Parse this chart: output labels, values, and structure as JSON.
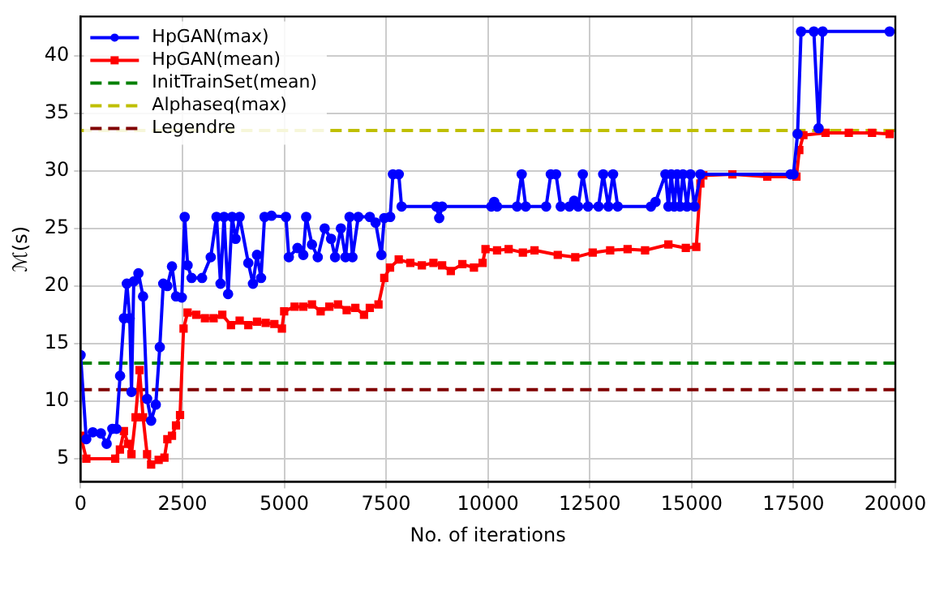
{
  "chart_data": {
    "type": "line",
    "xlabel": "No. of iterations",
    "ylabel": "ℳ(s)",
    "xlim": [
      0,
      20000
    ],
    "xticks": [
      0,
      2500,
      5000,
      7500,
      10000,
      12500,
      15000,
      17500,
      20000
    ],
    "ylim": [
      3,
      43.4
    ],
    "yticks": [
      5,
      10,
      15,
      20,
      25,
      30,
      35,
      40
    ],
    "grid": true,
    "legend": "top left",
    "line_style": "solid",
    "series": [
      {
        "name": "HpGAN(max)",
        "color": "#0000ff",
        "marker": "circle",
        "x": [
          0,
          140,
          300,
          500,
          640,
          780,
          880,
          970,
          1065,
          1136,
          1207,
          1250,
          1306,
          1420,
          1534,
          1633,
          1732,
          1846,
          1945,
          2030,
          2130,
          2244,
          2343,
          2485,
          2556,
          2627,
          2726,
          2982,
          3195,
          3337,
          3436,
          3522,
          3621,
          3720,
          3806,
          3905,
          4118,
          4232,
          4331,
          4430,
          4516,
          4686,
          5041,
          5112,
          5325,
          5467,
          5538,
          5680,
          5822,
          5992,
          6149,
          6248,
          6390,
          6504,
          6603,
          6674,
          6816,
          7100,
          7242,
          7384,
          7455,
          7600,
          7668,
          7810,
          7880,
          8733,
          8804,
          8875,
          10082,
          10153,
          10224,
          10714,
          10828,
          10928,
          11428,
          11543,
          11671,
          11786,
          12000,
          12114,
          12214,
          12328,
          12457,
          12714,
          12829,
          12957,
          13071,
          13186,
          14000,
          14114,
          14357,
          14429,
          14500,
          14572,
          14643,
          14714,
          14786,
          14886,
          14972,
          15072,
          15215,
          17430,
          17500,
          17600,
          17686,
          18000,
          18116,
          18216,
          19860
        ],
        "values": [
          14,
          6.7,
          7.3,
          7.2,
          6.3,
          7.6,
          7.6,
          12.2,
          17.2,
          20.2,
          17.2,
          10.8,
          20.4,
          21.1,
          19.1,
          10.2,
          8.3,
          9.7,
          14.7,
          20.2,
          20,
          21.7,
          19.1,
          19,
          26,
          21.8,
          20.7,
          20.7,
          22.5,
          26,
          20.2,
          26,
          19.3,
          26,
          24.1,
          26,
          22,
          20.2,
          22.7,
          20.7,
          26,
          26.1,
          26,
          22.5,
          23.3,
          22.7,
          26,
          23.6,
          22.5,
          25,
          24.1,
          22.5,
          25,
          22.5,
          26,
          22.5,
          26,
          26,
          25.5,
          22.7,
          25.9,
          26,
          29.7,
          29.7,
          26.9,
          26.9,
          25.9,
          26.9,
          26.9,
          27.3,
          26.9,
          26.9,
          29.7,
          26.9,
          26.9,
          29.7,
          29.7,
          26.9,
          26.9,
          27.4,
          26.9,
          29.7,
          26.9,
          26.9,
          29.7,
          26.9,
          29.7,
          26.9,
          26.9,
          27.3,
          29.7,
          26.9,
          29.7,
          26.9,
          29.7,
          26.9,
          29.7,
          26.9,
          29.7,
          26.9,
          29.7,
          29.7,
          29.7,
          33.2,
          42.1,
          42.1,
          33.7,
          42.1,
          42.1
        ]
      },
      {
        "name": "HpGAN(mean)",
        "color": "#ff0000",
        "marker": "square",
        "x": [
          0,
          142,
          850,
          966,
          1065,
          1164,
          1250,
          1350,
          1448,
          1534,
          1633,
          1732,
          1917,
          2059,
          2130,
          2244,
          2343,
          2442,
          2528,
          2627,
          2840,
          3053,
          3266,
          3479,
          3692,
          3905,
          4118,
          4331,
          4544,
          4757,
          4942,
          4998,
          5254,
          5467,
          5680,
          5893,
          6106,
          6319,
          6532,
          6745,
          6958,
          7100,
          7313,
          7455,
          7597,
          7810,
          8094,
          8378,
          8662,
          8875,
          9088,
          9372,
          9656,
          9869,
          9940,
          10224,
          10508,
          10857,
          11143,
          11714,
          12143,
          12571,
          13000,
          13428,
          13857,
          14429,
          14857,
          15114,
          15215,
          15286,
          16000,
          16857,
          17572,
          17643,
          17743,
          18286,
          18857,
          19428,
          19860
        ],
        "values": [
          7,
          5,
          5,
          5.8,
          7.4,
          6.3,
          5.4,
          8.6,
          12.7,
          8.6,
          5.4,
          4.5,
          4.9,
          5.1,
          6.7,
          7,
          7.9,
          8.8,
          16.3,
          17.7,
          17.5,
          17.2,
          17.2,
          17.5,
          16.6,
          17,
          16.6,
          16.9,
          16.8,
          16.7,
          16.3,
          17.8,
          18.2,
          18.2,
          18.4,
          17.8,
          18.2,
          18.4,
          17.9,
          18.1,
          17.5,
          18.1,
          18.4,
          20.7,
          21.6,
          22.3,
          22,
          21.8,
          22,
          21.8,
          21.3,
          21.9,
          21.6,
          22,
          23.2,
          23.1,
          23.2,
          22.9,
          23.1,
          22.7,
          22.5,
          22.9,
          23.1,
          23.2,
          23.1,
          23.6,
          23.3,
          23.4,
          28.9,
          29.6,
          29.7,
          29.5,
          29.5,
          31.8,
          33.1,
          33.3,
          33.3,
          33.3,
          33.2
        ]
      }
    ],
    "ref_lines": [
      {
        "axis": "y",
        "value": 13.3,
        "label": "InitTrainSet(mean)",
        "color": "#008000",
        "line_style": "dashed"
      },
      {
        "axis": "y",
        "value": 33.5,
        "label": "Alphaseq(max)",
        "color": "#bfbf00",
        "line_style": "dashed"
      },
      {
        "axis": "y",
        "value": 11,
        "label": "Legendre",
        "color": "#800000",
        "line_style": "dashed"
      }
    ]
  }
}
